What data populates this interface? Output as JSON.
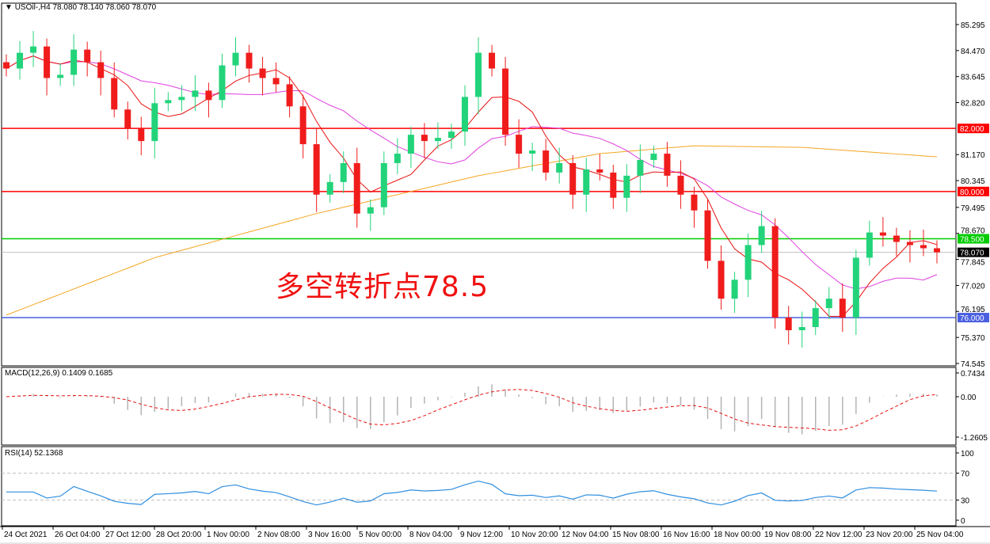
{
  "header": {
    "symbol": "USOil-,H4",
    "ohlc": "78.080 78.140 78.060 78.070",
    "menu_icon": "triangle-down-icon"
  },
  "annotation": "多空转折点78.5",
  "colors": {
    "up": "#22d37a",
    "down": "#f01c1c",
    "ma_fast": "#e81010",
    "ma_mid": "#e040e0",
    "ma_long": "#f5a623",
    "macd_hist": "#b4b4b4",
    "macd_signal": "#e81010",
    "rsi": "#2f8ee0"
  },
  "chart_data": {
    "type": "candlestick",
    "price_axis": {
      "range": [
        74.545,
        85.295
      ],
      "ticks": [
        "85.295",
        "84.470",
        "83.645",
        "82.820",
        "81.170",
        "80.345",
        "79.495",
        "78.670",
        "77.845",
        "77.020",
        "76.195",
        "75.370",
        "74.545"
      ]
    },
    "time_axis": {
      "ticks": [
        "24 Oct 2021",
        "26 Oct 04:00",
        "27 Oct 12:00",
        "28 Oct 20:00",
        "1 Nov 00:00",
        "2 Nov 08:00",
        "3 Nov 16:00",
        "5 Nov 00:00",
        "8 Nov 04:00",
        "9 Nov 12:00",
        "10 Nov 20:00",
        "12 Nov 04:00",
        "15 Nov 08:00",
        "16 Nov 16:00",
        "18 Nov 00:00",
        "19 Nov 08:00",
        "22 Nov 12:00",
        "23 Nov 20:00",
        "25 Nov 04:00"
      ]
    },
    "closes": [
      83.9,
      84.4,
      84.6,
      83.6,
      83.7,
      84.5,
      84.1,
      83.6,
      82.6,
      82.0,
      81.6,
      82.8,
      82.9,
      83.0,
      83.2,
      82.9,
      84.0,
      84.4,
      83.9,
      83.6,
      83.4,
      82.7,
      81.5,
      79.9,
      80.3,
      80.9,
      79.3,
      79.5,
      80.9,
      81.2,
      81.8,
      81.6,
      81.7,
      81.9,
      83.0,
      84.4,
      83.9,
      81.8,
      81.2,
      81.3,
      80.6,
      80.9,
      79.9,
      80.7,
      80.6,
      79.8,
      80.5,
      81.0,
      81.2,
      80.5,
      79.9,
      79.4,
      77.8,
      76.6,
      77.2,
      78.3,
      78.9,
      76.0,
      75.6,
      75.7,
      76.3,
      76.6,
      76.0,
      77.9,
      78.7,
      78.6,
      78.4,
      78.3,
      78.2,
      78.07
    ],
    "ma_long_points": [
      [
        0,
        76.08
      ],
      [
        11,
        77.9
      ],
      [
        23,
        79.3
      ],
      [
        35,
        80.5
      ],
      [
        44,
        81.2
      ],
      [
        51,
        81.45
      ],
      [
        59,
        81.4
      ],
      [
        69,
        81.1
      ]
    ],
    "levels": [
      {
        "price": 82.0,
        "label": "82.000",
        "color": "#ff0000"
      },
      {
        "price": 80.0,
        "label": "80.000",
        "color": "#ff0000"
      },
      {
        "price": 78.5,
        "label": "78.500",
        "color": "#00cc00"
      },
      {
        "price": 76.0,
        "label": "76.000",
        "color": "#4a5fe0"
      }
    ],
    "current_price": {
      "price": 78.07,
      "label": "78.070"
    },
    "macd": {
      "label": "MACD(12,26,9) 0.1409 0.1685",
      "ticks": [
        "0.7434",
        "0.00",
        "-1.2605"
      ],
      "range": [
        -1.2605,
        0.7434
      ]
    },
    "rsi": {
      "label": "RSI(14) 52.1368",
      "ticks": [
        "100",
        "70",
        "30",
        "0"
      ],
      "levels": [
        70,
        30
      ]
    }
  }
}
